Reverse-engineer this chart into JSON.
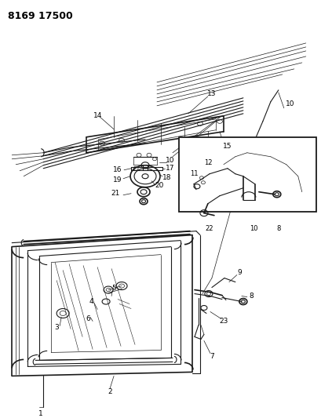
{
  "title": "8169 17500",
  "bg_color": "#ffffff",
  "line_color": "#1a1a1a",
  "label_color": "#000000",
  "title_fontsize": 9,
  "label_fontsize": 6.5,
  "fig_width": 4.1,
  "fig_height": 5.33,
  "dpi": 100
}
